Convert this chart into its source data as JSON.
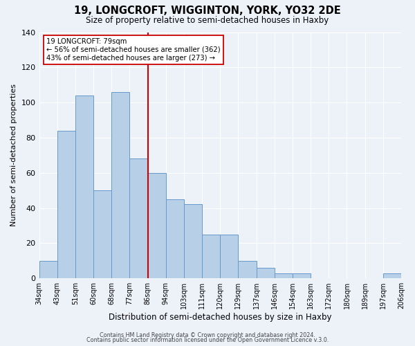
{
  "title": "19, LONGCROFT, WIGGINTON, YORK, YO32 2DE",
  "subtitle": "Size of property relative to semi-detached houses in Haxby",
  "xlabel": "Distribution of semi-detached houses by size in Haxby",
  "ylabel": "Number of semi-detached properties",
  "bin_labels": [
    "34sqm",
    "43sqm",
    "51sqm",
    "60sqm",
    "68sqm",
    "77sqm",
    "86sqm",
    "94sqm",
    "103sqm",
    "111sqm",
    "120sqm",
    "129sqm",
    "137sqm",
    "146sqm",
    "154sqm",
    "163sqm",
    "172sqm",
    "180sqm",
    "189sqm",
    "197sqm",
    "206sqm"
  ],
  "bar_values": [
    10,
    84,
    104,
    50,
    106,
    68,
    60,
    45,
    42,
    25,
    25,
    10,
    6,
    3,
    3,
    0,
    0,
    0,
    0,
    3
  ],
  "bar_color": "#b8cfe8",
  "bar_edge_color": "#6699cc",
  "marker_bin_index": 5,
  "marker_label": "19 LONGCROFT: 79sqm",
  "marker_line_color": "#cc0000",
  "annotation_line1": "← 56% of semi-detached houses are smaller (362)",
  "annotation_line2": "43% of semi-detached houses are larger (273) →",
  "annotation_box_color": "#cc0000",
  "ylim": [
    0,
    140
  ],
  "yticks": [
    0,
    20,
    40,
    60,
    80,
    100,
    120,
    140
  ],
  "footer1": "Contains HM Land Registry data © Crown copyright and database right 2024.",
  "footer2": "Contains public sector information licensed under the Open Government Licence v.3.0.",
  "background_color": "#edf2f9",
  "plot_bg_color": "#edf2f9"
}
